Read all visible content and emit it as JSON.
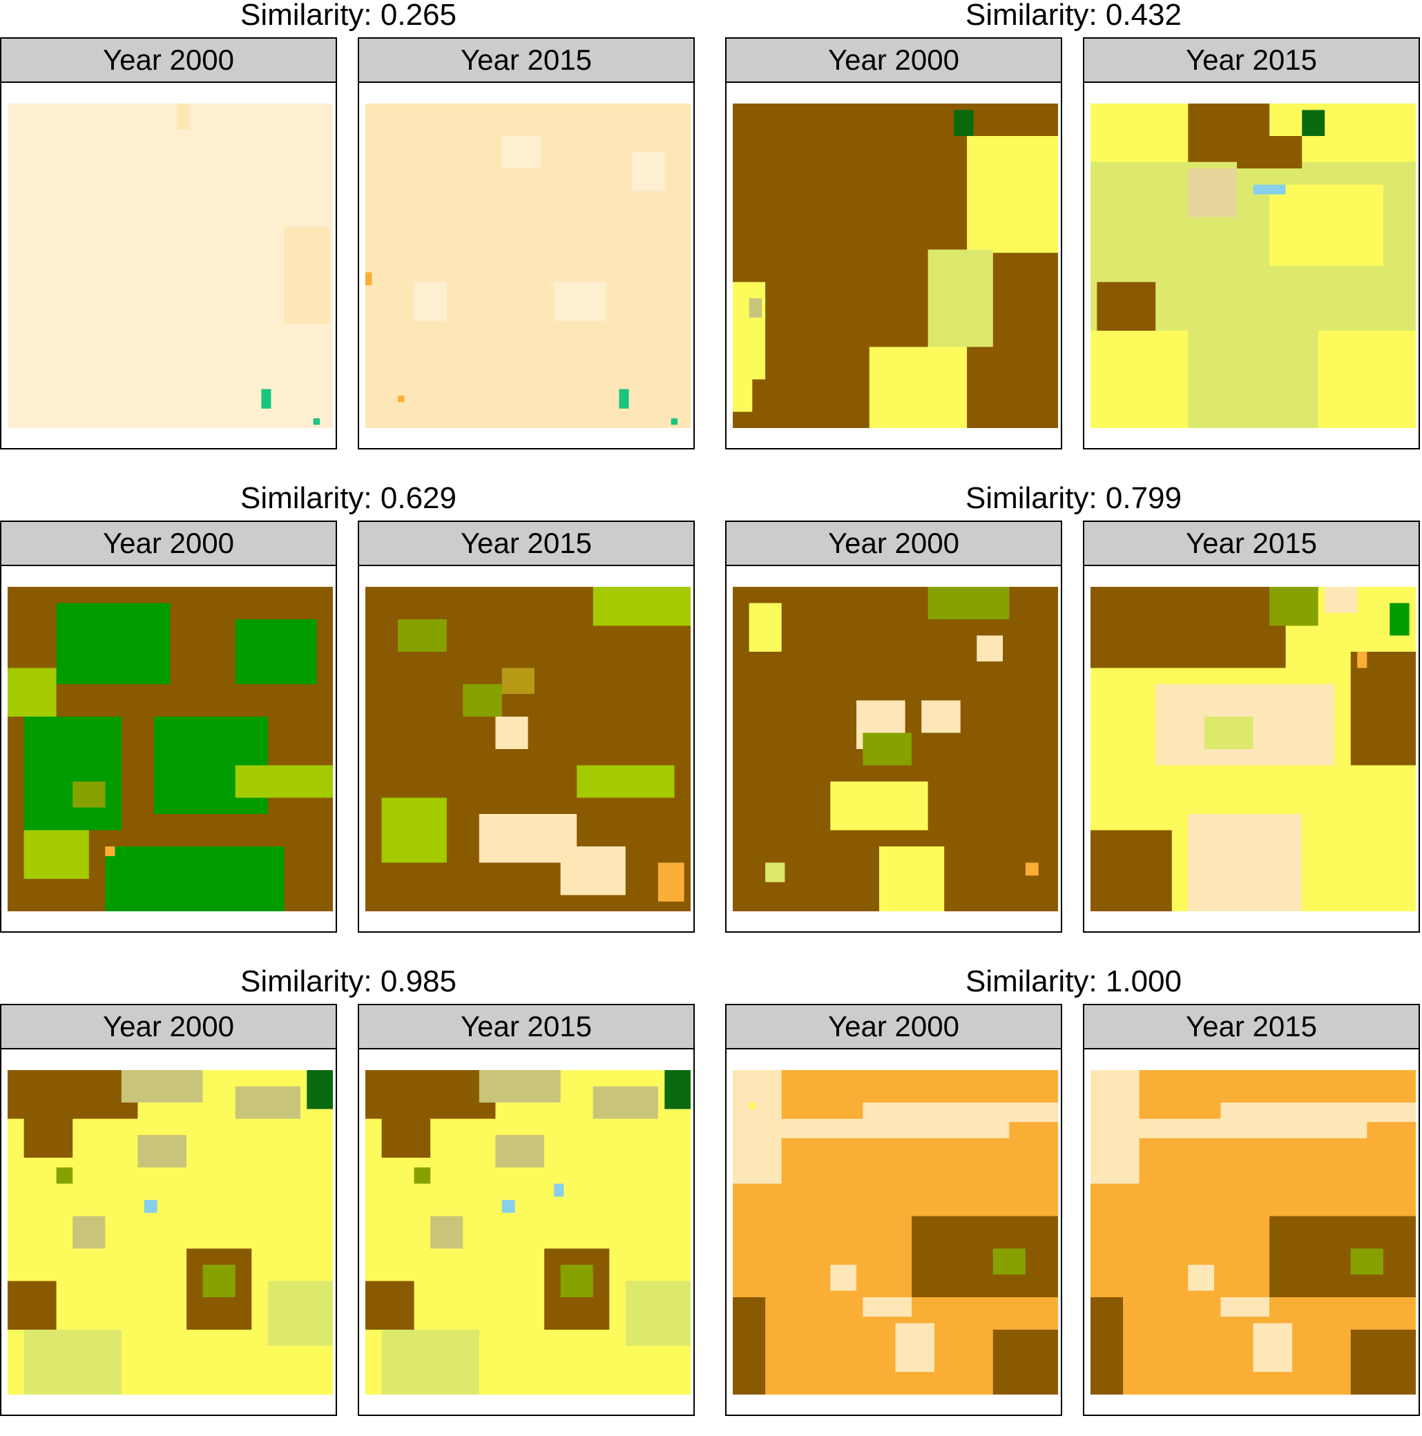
{
  "groups": [
    {
      "title": "Similarity: 0.265",
      "panels": [
        {
          "label": "Year 2000",
          "base": "#fdefd0",
          "patches": [
            [
              "#fde7b7",
              0.85,
              0.38,
              0.14,
              0.3
            ],
            [
              "#fde7b7",
              0.52,
              0.0,
              0.04,
              0.08
            ],
            [
              "#19c57f",
              0.78,
              0.88,
              0.03,
              0.06
            ],
            [
              "#19c57f",
              0.94,
              0.97,
              0.02,
              0.02
            ]
          ]
        },
        {
          "label": "Year 2015",
          "base": "#fde7b7",
          "patches": [
            [
              "#fdefd0",
              0.42,
              0.1,
              0.12,
              0.1
            ],
            [
              "#fdefd0",
              0.58,
              0.55,
              0.16,
              0.12
            ],
            [
              "#fdefd0",
              0.15,
              0.55,
              0.1,
              0.12
            ],
            [
              "#fdefd0",
              0.82,
              0.15,
              0.1,
              0.12
            ],
            [
              "#fbae35",
              0.0,
              0.52,
              0.02,
              0.04
            ],
            [
              "#fbae35",
              0.1,
              0.9,
              0.02,
              0.02
            ],
            [
              "#19c57f",
              0.78,
              0.88,
              0.03,
              0.06
            ],
            [
              "#19c57f",
              0.94,
              0.97,
              0.02,
              0.02
            ]
          ]
        }
      ]
    },
    {
      "title": "Similarity: 0.432",
      "panels": [
        {
          "label": "Year 2000",
          "base": "#8a5a00",
          "patches": [
            [
              "#fdfb5c",
              0.72,
              0.1,
              0.28,
              0.36
            ],
            [
              "#dde96d",
              0.6,
              0.45,
              0.2,
              0.3
            ],
            [
              "#fdfb5c",
              0.42,
              0.75,
              0.3,
              0.25
            ],
            [
              "#fdfb5c",
              0.0,
              0.55,
              0.1,
              0.3
            ],
            [
              "#fdfb5c",
              0.0,
              0.85,
              0.06,
              0.1
            ],
            [
              "#0a6a10",
              0.68,
              0.02,
              0.06,
              0.08
            ],
            [
              "#c8c57a",
              0.05,
              0.6,
              0.04,
              0.06
            ]
          ]
        },
        {
          "label": "Year 2015",
          "base": "#dde96d",
          "patches": [
            [
              "#fdfb5c",
              0.0,
              0.0,
              1.0,
              0.18
            ],
            [
              "#8a5a00",
              0.3,
              0.0,
              0.25,
              0.18
            ],
            [
              "#8a5a00",
              0.45,
              0.1,
              0.2,
              0.1
            ],
            [
              "#0a6a10",
              0.65,
              0.02,
              0.07,
              0.08
            ],
            [
              "#8a5a00",
              0.02,
              0.55,
              0.18,
              0.2
            ],
            [
              "#fdfb5c",
              0.0,
              0.7,
              0.3,
              0.3
            ],
            [
              "#fdfb5c",
              0.55,
              0.25,
              0.35,
              0.25
            ],
            [
              "#fdfb5c",
              0.7,
              0.7,
              0.3,
              0.3
            ],
            [
              "#87cfeb",
              0.5,
              0.25,
              0.1,
              0.03
            ],
            [
              "#e6d59b",
              0.3,
              0.2,
              0.15,
              0.15
            ]
          ]
        }
      ]
    },
    {
      "title": "Similarity: 0.629",
      "panels": [
        {
          "label": "Year 2000",
          "base": "#8a5a00",
          "patches": [
            [
              "#009b00",
              0.15,
              0.05,
              0.35,
              0.25
            ],
            [
              "#009b00",
              0.05,
              0.4,
              0.3,
              0.35
            ],
            [
              "#009b00",
              0.45,
              0.4,
              0.35,
              0.3
            ],
            [
              "#009b00",
              0.7,
              0.1,
              0.25,
              0.2
            ],
            [
              "#009b00",
              0.3,
              0.8,
              0.55,
              0.2
            ],
            [
              "#a3cb00",
              0.0,
              0.25,
              0.15,
              0.15
            ],
            [
              "#a3cb00",
              0.7,
              0.55,
              0.3,
              0.1
            ],
            [
              "#a3cb00",
              0.05,
              0.75,
              0.2,
              0.15
            ],
            [
              "#87a200",
              0.2,
              0.6,
              0.1,
              0.08
            ],
            [
              "#fbae35",
              0.3,
              0.8,
              0.03,
              0.03
            ]
          ]
        },
        {
          "label": "Year 2015",
          "base": "#8a5a00",
          "patches": [
            [
              "#a3cb00",
              0.05,
              0.65,
              0.2,
              0.2
            ],
            [
              "#a3cb00",
              0.65,
              0.55,
              0.3,
              0.1
            ],
            [
              "#a3cb00",
              0.7,
              0.0,
              0.3,
              0.12
            ],
            [
              "#87a200",
              0.3,
              0.3,
              0.12,
              0.1
            ],
            [
              "#fde7b7",
              0.35,
              0.7,
              0.3,
              0.15
            ],
            [
              "#fde7b7",
              0.6,
              0.8,
              0.2,
              0.15
            ],
            [
              "#fde7b7",
              0.4,
              0.4,
              0.1,
              0.1
            ],
            [
              "#fbae35",
              0.9,
              0.85,
              0.08,
              0.12
            ],
            [
              "#b69a16",
              0.42,
              0.25,
              0.1,
              0.08
            ],
            [
              "#87a200",
              0.1,
              0.1,
              0.15,
              0.1
            ]
          ]
        }
      ]
    },
    {
      "title": "Similarity: 0.799",
      "panels": [
        {
          "label": "Year 2000",
          "base": "#8a5a00",
          "patches": [
            [
              "#fdfb5c",
              0.05,
              0.05,
              0.1,
              0.15
            ],
            [
              "#fde7b7",
              0.38,
              0.35,
              0.15,
              0.15
            ],
            [
              "#fde7b7",
              0.58,
              0.35,
              0.12,
              0.1
            ],
            [
              "#fdfb5c",
              0.3,
              0.6,
              0.3,
              0.15
            ],
            [
              "#87a200",
              0.4,
              0.45,
              0.15,
              0.1
            ],
            [
              "#fdfb5c",
              0.45,
              0.8,
              0.2,
              0.2
            ],
            [
              "#87a200",
              0.6,
              0.0,
              0.25,
              0.1
            ],
            [
              "#fde7b7",
              0.75,
              0.15,
              0.08,
              0.08
            ],
            [
              "#fbae35",
              0.9,
              0.85,
              0.04,
              0.04
            ],
            [
              "#dde96d",
              0.1,
              0.85,
              0.06,
              0.06
            ]
          ]
        },
        {
          "label": "Year 2015",
          "base": "#fdfb5c",
          "patches": [
            [
              "#8a5a00",
              0.0,
              0.0,
              0.6,
              0.25
            ],
            [
              "#8a5a00",
              0.8,
              0.2,
              0.2,
              0.35
            ],
            [
              "#fde7b7",
              0.2,
              0.3,
              0.55,
              0.25
            ],
            [
              "#fde7b7",
              0.3,
              0.7,
              0.35,
              0.3
            ],
            [
              "#8a5a00",
              0.0,
              0.75,
              0.25,
              0.25
            ],
            [
              "#87a200",
              0.55,
              0.0,
              0.15,
              0.12
            ],
            [
              "#fde7b7",
              0.72,
              0.0,
              0.1,
              0.08
            ],
            [
              "#dde96d",
              0.35,
              0.4,
              0.15,
              0.1
            ],
            [
              "#fbae35",
              0.82,
              0.2,
              0.03,
              0.05
            ],
            [
              "#009b00",
              0.92,
              0.05,
              0.06,
              0.1
            ]
          ]
        }
      ]
    },
    {
      "title": "Similarity: 0.985",
      "panels": [
        {
          "label": "Year 2000",
          "base": "#fdfb5c",
          "patches": [
            [
              "#8a5a00",
              0.0,
              0.0,
              0.4,
              0.15
            ],
            [
              "#c8c57a",
              0.35,
              0.0,
              0.25,
              0.1
            ],
            [
              "#8a5a00",
              0.05,
              0.15,
              0.15,
              0.12
            ],
            [
              "#87a200",
              0.15,
              0.3,
              0.05,
              0.05
            ],
            [
              "#8a5a00",
              0.55,
              0.55,
              0.2,
              0.25
            ],
            [
              "#87a200",
              0.6,
              0.6,
              0.1,
              0.1
            ],
            [
              "#8a5a00",
              0.0,
              0.65,
              0.15,
              0.15
            ],
            [
              "#c8c57a",
              0.2,
              0.45,
              0.1,
              0.1
            ],
            [
              "#dde96d",
              0.05,
              0.8,
              0.3,
              0.2
            ],
            [
              "#c8c57a",
              0.4,
              0.2,
              0.15,
              0.1
            ],
            [
              "#dde96d",
              0.8,
              0.65,
              0.2,
              0.2
            ],
            [
              "#87cfeb",
              0.42,
              0.4,
              0.04,
              0.04
            ],
            [
              "#0a6a10",
              0.92,
              0.0,
              0.08,
              0.12
            ],
            [
              "#c8c57a",
              0.7,
              0.05,
              0.2,
              0.1
            ]
          ]
        },
        {
          "label": "Year 2015",
          "base": "#fdfb5c",
          "patches": [
            [
              "#8a5a00",
              0.0,
              0.0,
              0.4,
              0.15
            ],
            [
              "#c8c57a",
              0.35,
              0.0,
              0.25,
              0.1
            ],
            [
              "#8a5a00",
              0.05,
              0.15,
              0.15,
              0.12
            ],
            [
              "#87a200",
              0.15,
              0.3,
              0.05,
              0.05
            ],
            [
              "#8a5a00",
              0.55,
              0.55,
              0.2,
              0.25
            ],
            [
              "#87a200",
              0.6,
              0.6,
              0.1,
              0.1
            ],
            [
              "#8a5a00",
              0.0,
              0.65,
              0.15,
              0.15
            ],
            [
              "#c8c57a",
              0.2,
              0.45,
              0.1,
              0.1
            ],
            [
              "#dde96d",
              0.05,
              0.8,
              0.3,
              0.2
            ],
            [
              "#c8c57a",
              0.4,
              0.2,
              0.15,
              0.1
            ],
            [
              "#dde96d",
              0.8,
              0.65,
              0.2,
              0.2
            ],
            [
              "#87cfeb",
              0.42,
              0.4,
              0.04,
              0.04
            ],
            [
              "#87cfeb",
              0.58,
              0.35,
              0.03,
              0.04
            ],
            [
              "#0a6a10",
              0.92,
              0.0,
              0.08,
              0.12
            ],
            [
              "#c8c57a",
              0.7,
              0.05,
              0.2,
              0.1
            ]
          ]
        }
      ]
    },
    {
      "title": "Similarity: 1.000",
      "panels": [
        {
          "label": "Year 2000",
          "base": "#fbae35",
          "patches": [
            [
              "#fde7b7",
              0.0,
              0.0,
              0.15,
              0.35
            ],
            [
              "#fde7b7",
              0.15,
              0.15,
              0.7,
              0.06
            ],
            [
              "#fde7b7",
              0.4,
              0.1,
              0.6,
              0.06
            ],
            [
              "#fde7b7",
              0.3,
              0.6,
              0.08,
              0.08
            ],
            [
              "#fde7b7",
              0.4,
              0.7,
              0.15,
              0.06
            ],
            [
              "#fde7b7",
              0.5,
              0.78,
              0.12,
              0.15
            ],
            [
              "#8a5a00",
              0.55,
              0.45,
              0.45,
              0.25
            ],
            [
              "#87a200",
              0.8,
              0.55,
              0.1,
              0.08
            ],
            [
              "#8a5a00",
              0.0,
              0.7,
              0.1,
              0.3
            ],
            [
              "#8a5a00",
              0.8,
              0.8,
              0.2,
              0.2
            ],
            [
              "#fdfb5c",
              0.05,
              0.1,
              0.02,
              0.02
            ]
          ]
        },
        {
          "label": "Year 2015",
          "base": "#fbae35",
          "patches": [
            [
              "#fde7b7",
              0.0,
              0.0,
              0.15,
              0.35
            ],
            [
              "#fde7b7",
              0.15,
              0.15,
              0.7,
              0.06
            ],
            [
              "#fde7b7",
              0.4,
              0.1,
              0.6,
              0.06
            ],
            [
              "#fde7b7",
              0.3,
              0.6,
              0.08,
              0.08
            ],
            [
              "#fde7b7",
              0.4,
              0.7,
              0.15,
              0.06
            ],
            [
              "#fde7b7",
              0.5,
              0.78,
              0.12,
              0.15
            ],
            [
              "#8a5a00",
              0.55,
              0.45,
              0.45,
              0.25
            ],
            [
              "#87a200",
              0.8,
              0.55,
              0.1,
              0.08
            ],
            [
              "#8a5a00",
              0.0,
              0.7,
              0.1,
              0.3
            ],
            [
              "#8a5a00",
              0.8,
              0.8,
              0.2,
              0.2
            ]
          ]
        }
      ]
    }
  ]
}
